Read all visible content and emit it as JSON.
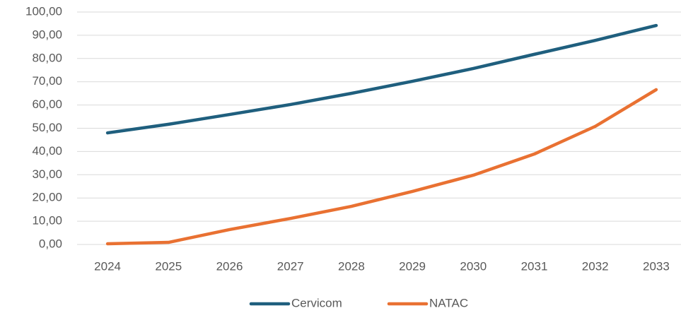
{
  "chart_data": {
    "type": "line",
    "categories": [
      "2024",
      "2025",
      "2026",
      "2027",
      "2028",
      "2029",
      "2030",
      "2031",
      "2032",
      "2033"
    ],
    "series": [
      {
        "name": "Cervicom",
        "color": "#1f5f7e",
        "values": [
          48.0,
          51.7,
          55.9,
          60.2,
          65.0,
          70.2,
          75.7,
          81.8,
          87.8,
          94.2
        ]
      },
      {
        "name": "NATAC",
        "color": "#e97132",
        "values": [
          0.3,
          0.9,
          6.4,
          11.2,
          16.4,
          22.8,
          29.8,
          38.9,
          50.8,
          66.6
        ]
      }
    ],
    "ylim": [
      0,
      100
    ],
    "yticks": [
      {
        "value": 0,
        "label": "0,00"
      },
      {
        "value": 10,
        "label": "10,00"
      },
      {
        "value": 20,
        "label": "20,00"
      },
      {
        "value": 30,
        "label": "30,00"
      },
      {
        "value": 40,
        "label": "40,00"
      },
      {
        "value": 50,
        "label": "50,00"
      },
      {
        "value": 60,
        "label": "60,00"
      },
      {
        "value": 70,
        "label": "70,00"
      },
      {
        "value": 80,
        "label": "80,00"
      },
      {
        "value": 90,
        "label": "90,00"
      },
      {
        "value": 100,
        "label": "100,00"
      }
    ],
    "grid": true,
    "legend": "bottom"
  }
}
